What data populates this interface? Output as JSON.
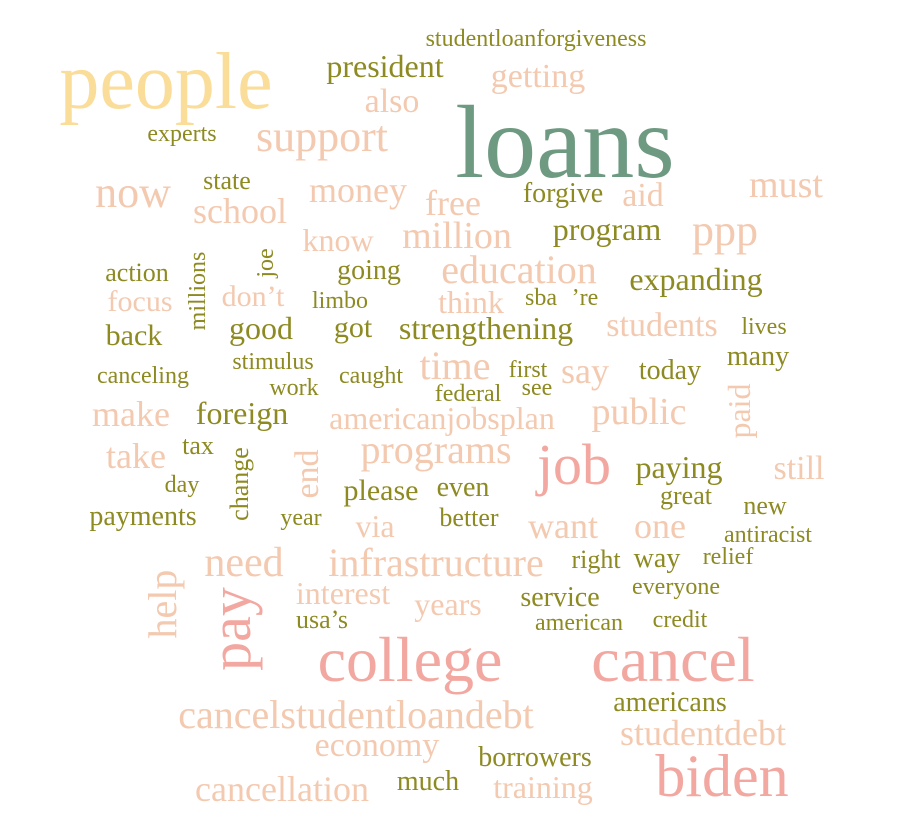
{
  "palette": {
    "olive": "#8d8a22",
    "peach": "#f3c9b0",
    "pink": "#f2a8a0",
    "yellow": "#fbdd9a",
    "green": "#6f9a82"
  },
  "words": [
    {
      "text": "loans",
      "color": "green"
    },
    {
      "text": "people",
      "color": "yellow"
    },
    {
      "text": "college",
      "color": "pink"
    },
    {
      "text": "cancel",
      "color": "pink"
    },
    {
      "text": "biden",
      "color": "pink"
    },
    {
      "text": "job",
      "color": "pink"
    },
    {
      "text": "pay",
      "color": "pink"
    },
    {
      "text": "cancelstudentloandebt",
      "color": "peach"
    },
    {
      "text": "support",
      "color": "peach"
    },
    {
      "text": "studentloanforgiveness",
      "color": "olive"
    },
    {
      "text": "president",
      "color": "olive"
    },
    {
      "text": "getting",
      "color": "peach"
    },
    {
      "text": "also",
      "color": "peach"
    },
    {
      "text": "experts",
      "color": "olive"
    },
    {
      "text": "now",
      "color": "peach"
    },
    {
      "text": "state",
      "color": "olive"
    },
    {
      "text": "school",
      "color": "peach"
    },
    {
      "text": "money",
      "color": "peach"
    },
    {
      "text": "free",
      "color": "peach"
    },
    {
      "text": "forgive",
      "color": "olive"
    },
    {
      "text": "aid",
      "color": "peach"
    },
    {
      "text": "must",
      "color": "peach"
    },
    {
      "text": "know",
      "color": "peach"
    },
    {
      "text": "million",
      "color": "peach"
    },
    {
      "text": "program",
      "color": "olive"
    },
    {
      "text": "ppp",
      "color": "peach"
    },
    {
      "text": "action",
      "color": "olive"
    },
    {
      "text": "millions",
      "color": "olive"
    },
    {
      "text": "joe",
      "color": "olive"
    },
    {
      "text": "going",
      "color": "olive"
    },
    {
      "text": "education",
      "color": "peach"
    },
    {
      "text": "expanding",
      "color": "olive"
    },
    {
      "text": "focus",
      "color": "peach"
    },
    {
      "text": "don’t",
      "color": "peach"
    },
    {
      "text": "limbo",
      "color": "olive"
    },
    {
      "text": "think",
      "color": "peach"
    },
    {
      "text": "sba",
      "color": "olive"
    },
    {
      "text": "’re",
      "color": "olive"
    },
    {
      "text": "back",
      "color": "olive"
    },
    {
      "text": "good",
      "color": "olive"
    },
    {
      "text": "got",
      "color": "olive"
    },
    {
      "text": "strengthening",
      "color": "olive"
    },
    {
      "text": "students",
      "color": "peach"
    },
    {
      "text": "lives",
      "color": "olive"
    },
    {
      "text": "canceling",
      "color": "olive"
    },
    {
      "text": "stimulus",
      "color": "olive"
    },
    {
      "text": "caught",
      "color": "olive"
    },
    {
      "text": "time",
      "color": "peach"
    },
    {
      "text": "first",
      "color": "olive"
    },
    {
      "text": "say",
      "color": "peach"
    },
    {
      "text": "today",
      "color": "olive"
    },
    {
      "text": "many",
      "color": "olive"
    },
    {
      "text": "work",
      "color": "olive"
    },
    {
      "text": "federal",
      "color": "olive"
    },
    {
      "text": "see",
      "color": "olive"
    },
    {
      "text": "paid",
      "color": "peach"
    },
    {
      "text": "make",
      "color": "peach"
    },
    {
      "text": "foreign",
      "color": "olive"
    },
    {
      "text": "americanjobsplan",
      "color": "peach"
    },
    {
      "text": "public",
      "color": "peach"
    },
    {
      "text": "take",
      "color": "peach"
    },
    {
      "text": "tax",
      "color": "olive"
    },
    {
      "text": "change",
      "color": "olive"
    },
    {
      "text": "end",
      "color": "peach"
    },
    {
      "text": "programs",
      "color": "peach"
    },
    {
      "text": "paying",
      "color": "olive"
    },
    {
      "text": "still",
      "color": "peach"
    },
    {
      "text": "day",
      "color": "olive"
    },
    {
      "text": "please",
      "color": "olive"
    },
    {
      "text": "even",
      "color": "olive"
    },
    {
      "text": "great",
      "color": "olive"
    },
    {
      "text": "new",
      "color": "olive"
    },
    {
      "text": "payments",
      "color": "olive"
    },
    {
      "text": "year",
      "color": "olive"
    },
    {
      "text": "via",
      "color": "peach"
    },
    {
      "text": "better",
      "color": "olive"
    },
    {
      "text": "want",
      "color": "peach"
    },
    {
      "text": "one",
      "color": "peach"
    },
    {
      "text": "antiracist",
      "color": "olive"
    },
    {
      "text": "need",
      "color": "peach"
    },
    {
      "text": "infrastructure",
      "color": "peach"
    },
    {
      "text": "right",
      "color": "olive"
    },
    {
      "text": "way",
      "color": "olive"
    },
    {
      "text": "relief",
      "color": "olive"
    },
    {
      "text": "help",
      "color": "peach"
    },
    {
      "text": "interest",
      "color": "peach"
    },
    {
      "text": "years",
      "color": "peach"
    },
    {
      "text": "service",
      "color": "olive"
    },
    {
      "text": "everyone",
      "color": "olive"
    },
    {
      "text": "usa’s",
      "color": "olive"
    },
    {
      "text": "american",
      "color": "olive"
    },
    {
      "text": "credit",
      "color": "olive"
    },
    {
      "text": "americans",
      "color": "olive"
    },
    {
      "text": "studentdebt",
      "color": "peach"
    },
    {
      "text": "economy",
      "color": "peach"
    },
    {
      "text": "borrowers",
      "color": "olive"
    },
    {
      "text": "cancellation",
      "color": "peach"
    },
    {
      "text": "much",
      "color": "olive"
    },
    {
      "text": "training",
      "color": "peach"
    }
  ]
}
